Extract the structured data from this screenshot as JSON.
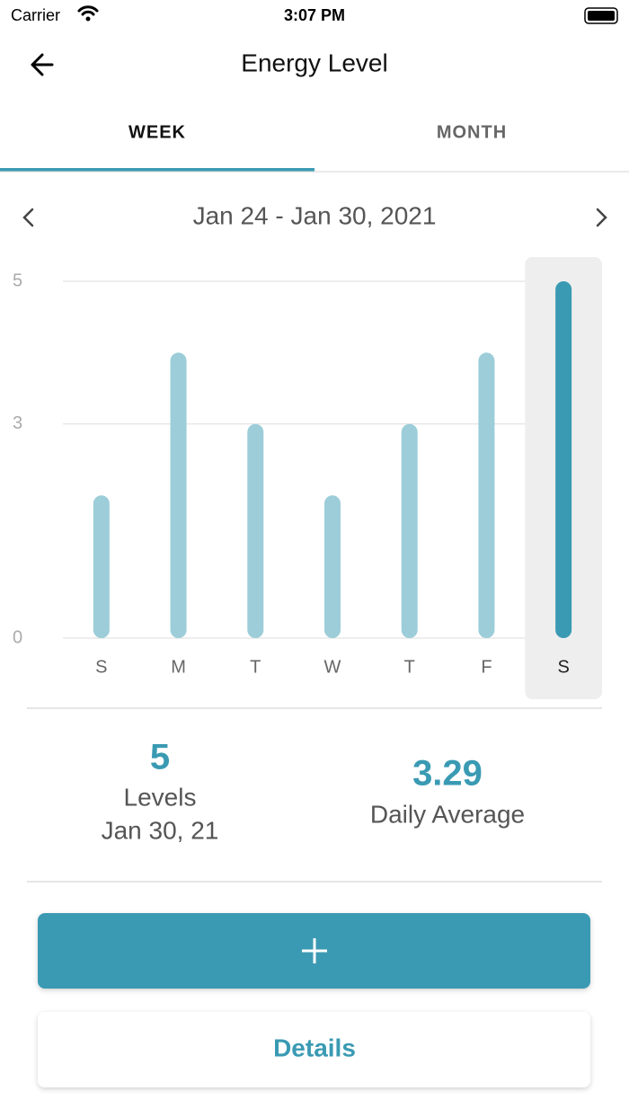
{
  "status_bar": {
    "carrier": "Carrier",
    "time": "3:07 PM"
  },
  "header": {
    "title": "Energy Level"
  },
  "tabs": [
    "WEEK",
    "MONTH"
  ],
  "active_tab": 0,
  "date_range": "Jan 24 - Jan 30, 2021",
  "chart_data": {
    "type": "bar",
    "categories": [
      "S",
      "M",
      "T",
      "W",
      "T",
      "F",
      "S"
    ],
    "values": [
      2,
      4,
      3,
      2,
      3,
      4,
      5
    ],
    "color": "#9ccdd9",
    "highlight_color": "#3a9ab3",
    "highlight_index": 6,
    "ylim": [
      0,
      5
    ],
    "yticks": [
      0,
      3,
      5
    ],
    "grid": true
  },
  "summary": {
    "selected": {
      "value": 5,
      "label": "Levels",
      "date": "Jan 30, 21"
    },
    "average": {
      "value": 3.29,
      "label": "Daily Average"
    }
  },
  "buttons": {
    "details": "Details"
  }
}
